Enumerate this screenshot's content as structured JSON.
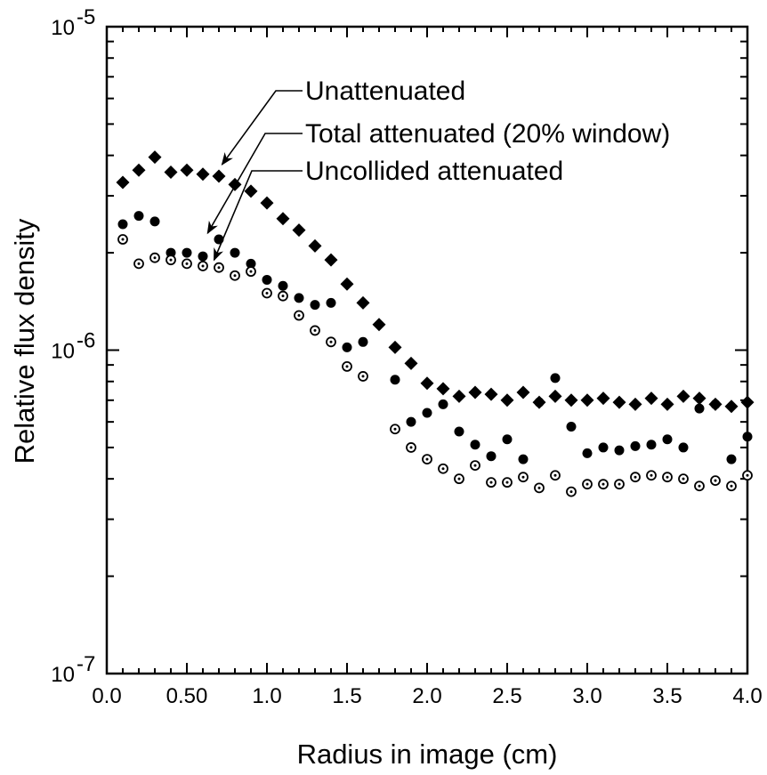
{
  "chart_data": {
    "type": "scatter",
    "xlabel": "Radius in image (cm)",
    "ylabel": "Relative flux density",
    "xlim": [
      0.0,
      4.0
    ],
    "ylim": [
      1e-07,
      1e-05
    ],
    "yscale": "log",
    "grid": false,
    "legend": "none",
    "x_ticks": [
      {
        "value": 0.0,
        "label": "0.0"
      },
      {
        "value": 0.5,
        "label": "0.50"
      },
      {
        "value": 1.0,
        "label": "1.0"
      },
      {
        "value": 1.5,
        "label": "1.5"
      },
      {
        "value": 2.0,
        "label": "2.0"
      },
      {
        "value": 2.5,
        "label": "2.5"
      },
      {
        "value": 3.0,
        "label": "3.0"
      },
      {
        "value": 3.5,
        "label": "3.5"
      },
      {
        "value": 4.0,
        "label": "4.0"
      }
    ],
    "y_ticks": [
      {
        "value": 1e-05,
        "base": "10",
        "exp": "-5"
      },
      {
        "value": 1e-06,
        "base": "10",
        "exp": "-6"
      },
      {
        "value": 1e-07,
        "base": "10",
        "exp": "-7"
      }
    ],
    "series": [
      {
        "name": "Unattenuated",
        "marker": "diamond-filled",
        "x": [
          0.1,
          0.2,
          0.3,
          0.4,
          0.5,
          0.6,
          0.7,
          0.8,
          0.9,
          1.0,
          1.1,
          1.2,
          1.3,
          1.4,
          1.5,
          1.6,
          1.7,
          1.8,
          1.9,
          2.0,
          2.1,
          2.2,
          2.3,
          2.4,
          2.5,
          2.6,
          2.7,
          2.8,
          2.9,
          3.0,
          3.1,
          3.2,
          3.3,
          3.4,
          3.5,
          3.6,
          3.7,
          3.8,
          3.9,
          4.0
        ],
        "y": [
          3.3e-06,
          3.6e-06,
          3.95e-06,
          3.55e-06,
          3.6e-06,
          3.5e-06,
          3.45e-06,
          3.25e-06,
          3.1e-06,
          2.85e-06,
          2.55e-06,
          2.35e-06,
          2.1e-06,
          1.9e-06,
          1.6e-06,
          1.4e-06,
          1.2e-06,
          1.02e-06,
          9.1e-07,
          7.9e-07,
          7.6e-07,
          7.2e-07,
          7.4e-07,
          7.3e-07,
          7e-07,
          7.4e-07,
          6.9e-07,
          7.2e-07,
          7e-07,
          7e-07,
          7.1e-07,
          6.9e-07,
          6.8e-07,
          7.1e-07,
          6.8e-07,
          7.2e-07,
          7.1e-07,
          6.8e-07,
          6.7e-07,
          6.9e-07
        ]
      },
      {
        "name": "Total attenuated (20% window)",
        "marker": "circle-filled",
        "x": [
          0.1,
          0.2,
          0.3,
          0.4,
          0.5,
          0.6,
          0.7,
          0.8,
          0.9,
          1.0,
          1.1,
          1.2,
          1.3,
          1.4,
          1.5,
          1.6,
          1.7,
          1.8,
          1.9,
          2.0,
          2.1,
          2.2,
          2.3,
          2.4,
          2.5,
          2.6,
          2.7,
          2.8,
          2.9,
          3.0,
          3.1,
          3.2,
          3.3,
          3.4,
          3.5,
          3.6,
          3.7,
          3.8,
          3.9,
          4.0
        ],
        "y": [
          2.45e-06,
          2.6e-06,
          2.5e-06,
          2e-06,
          2e-06,
          1.95e-06,
          2.2e-06,
          2e-06,
          1.85e-06,
          1.65e-06,
          1.58e-06,
          1.45e-06,
          1.38e-06,
          1.4e-06,
          1.02e-06,
          1.06e-06,
          null,
          8.1e-07,
          6e-07,
          6.4e-07,
          6.8e-07,
          5.6e-07,
          5.1e-07,
          4.7e-07,
          5.3e-07,
          4.6e-07,
          6.9e-07,
          8.2e-07,
          5.8e-07,
          4.8e-07,
          5e-07,
          4.9e-07,
          5.05e-07,
          5.1e-07,
          5.3e-07,
          5e-07,
          6.6e-07,
          6.8e-07,
          4.6e-07,
          5.4e-07
        ]
      },
      {
        "name": "Uncollided attenuated",
        "marker": "circle-open-dot",
        "x": [
          0.1,
          0.2,
          0.3,
          0.4,
          0.5,
          0.6,
          0.7,
          0.8,
          0.9,
          1.0,
          1.1,
          1.2,
          1.3,
          1.4,
          1.5,
          1.6,
          1.7,
          1.8,
          1.9,
          2.0,
          2.1,
          2.2,
          2.3,
          2.4,
          2.5,
          2.6,
          2.7,
          2.8,
          2.9,
          3.0,
          3.1,
          3.2,
          3.3,
          3.4,
          3.5,
          3.6,
          3.7,
          3.8,
          3.9,
          4.0
        ],
        "y": [
          2.2e-06,
          1.85e-06,
          1.93e-06,
          1.9e-06,
          1.85e-06,
          1.82e-06,
          1.8e-06,
          1.7e-06,
          1.75e-06,
          1.5e-06,
          1.47e-06,
          1.28e-06,
          1.15e-06,
          1.06e-06,
          8.9e-07,
          8.3e-07,
          null,
          5.7e-07,
          5e-07,
          4.6e-07,
          4.3e-07,
          4e-07,
          4.4e-07,
          3.9e-07,
          3.9e-07,
          4.05e-07,
          3.75e-07,
          4.1e-07,
          3.65e-07,
          3.85e-07,
          3.85e-07,
          3.85e-07,
          4.05e-07,
          4.1e-07,
          4.05e-07,
          4e-07,
          3.8e-07,
          3.95e-07,
          3.8e-07,
          4.1e-07
        ]
      }
    ],
    "annotations": [
      {
        "text": "Unattenuated",
        "arrow_to": {
          "x": 0.72,
          "y": 3.75e-06
        }
      },
      {
        "text": "Total attenuated (20% window)",
        "arrow_to": {
          "x": 0.63,
          "y": 2.3e-06
        }
      },
      {
        "text": "Uncollided attenuated",
        "arrow_to": {
          "x": 0.67,
          "y": 1.9e-06
        }
      }
    ]
  }
}
